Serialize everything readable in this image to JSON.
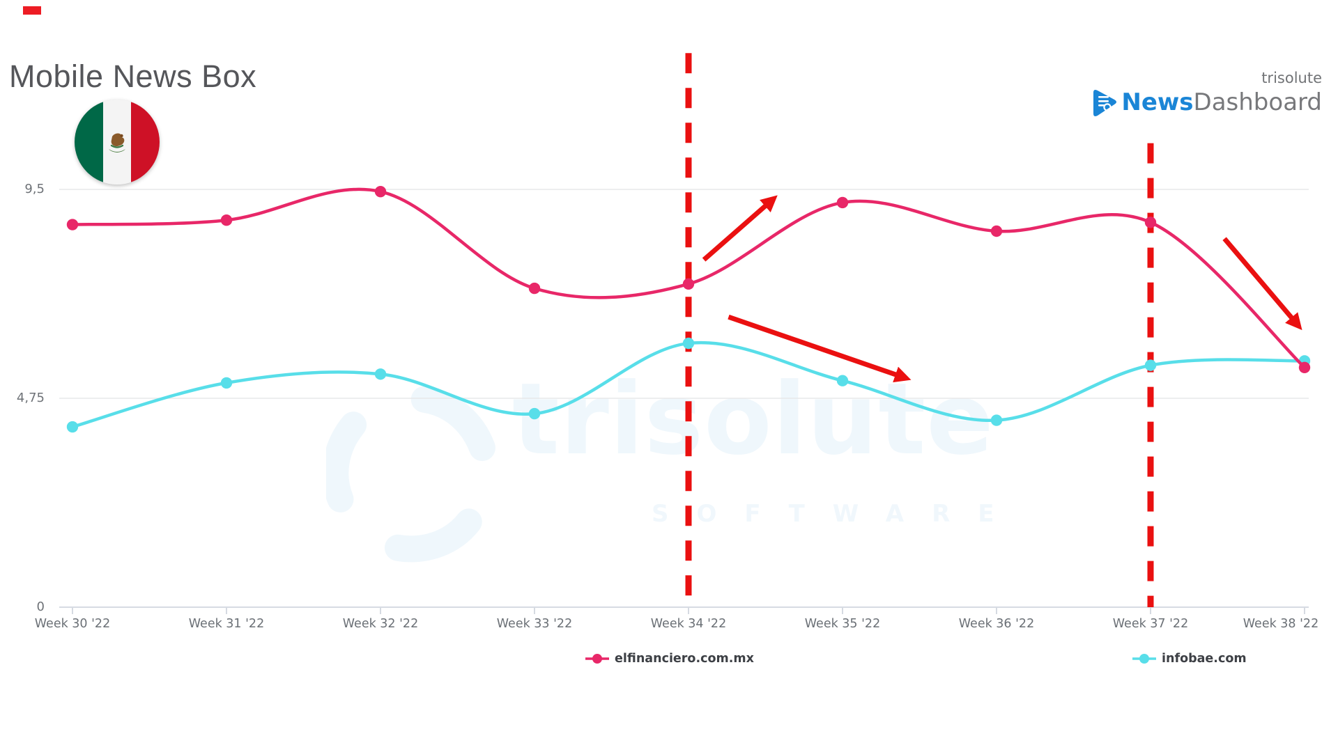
{
  "decor": {
    "top_left_bar_color": "#ed1c24"
  },
  "header": {
    "title": "Mobile News Box",
    "country": "mexico-flag",
    "flag_colors": {
      "green": "#006847",
      "white": "#f4f4f4",
      "red": "#ce1126"
    }
  },
  "brand": {
    "small_text": "trisolute",
    "name_primary": "News",
    "name_secondary": "Dashboard",
    "primary_color": "#1a85d6",
    "secondary_color": "#77787b"
  },
  "watermark": {
    "word": "trisolute",
    "subword": "SOFTWARE"
  },
  "chart_data": {
    "type": "line",
    "title": "Mobile News Box",
    "categories": [
      "Week 30 '22",
      "Week 31 '22",
      "Week 32 '22",
      "Week 33 '22",
      "Week 34 '22",
      "Week 35 '22",
      "Week 36 '22",
      "Week 37 '22",
      "Week 38 '22"
    ],
    "xlabel": "",
    "ylabel": "",
    "ylim": [
      0,
      12.6
    ],
    "grid": "horizontal",
    "legend_position": "bottom",
    "y_ticks": [
      {
        "value": 0,
        "label": "0"
      },
      {
        "value": 4.75,
        "label": "4,75"
      },
      {
        "value": 9.5,
        "label": "9,5"
      }
    ],
    "series": [
      {
        "name": "infobae.com",
        "color": "#58dee9",
        "values": [
          4.1,
          5.1,
          5.3,
          4.4,
          6.0,
          5.15,
          4.25,
          5.5,
          5.6
        ]
      },
      {
        "name": "elfinanciero.com.mx",
        "color": "#e82768",
        "values": [
          8.7,
          8.8,
          9.45,
          7.25,
          7.35,
          9.2,
          8.55,
          8.75,
          5.45
        ]
      }
    ],
    "annotations": {
      "vertical_dashed_lines": [
        {
          "at_category": "Week 34 '22",
          "category_index": 4,
          "from_value": 12.6,
          "to_value": 0,
          "color": "#ea1010"
        },
        {
          "at_category": "Week 37 '22",
          "category_index": 7,
          "from_value": 10.55,
          "to_value": 0,
          "color": "#ea1010"
        }
      ],
      "arrows": [
        {
          "x1": 4.1,
          "y1": 7.9,
          "x2": 4.55,
          "y2": 9.28,
          "direction": "up",
          "color": "#ea1010"
        },
        {
          "x1": 4.26,
          "y1": 6.6,
          "x2": 5.41,
          "y2": 5.21,
          "direction": "down",
          "color": "#ea1010"
        },
        {
          "x1": 7.48,
          "y1": 8.38,
          "x2": 7.96,
          "y2": 6.4,
          "direction": "down",
          "color": "#ea1010"
        }
      ]
    }
  },
  "legend": {
    "items": [
      {
        "label": "elfinanciero.com.mx",
        "color": "#e82768"
      },
      {
        "label": "infobae.com",
        "color": "#58dee9"
      }
    ]
  }
}
